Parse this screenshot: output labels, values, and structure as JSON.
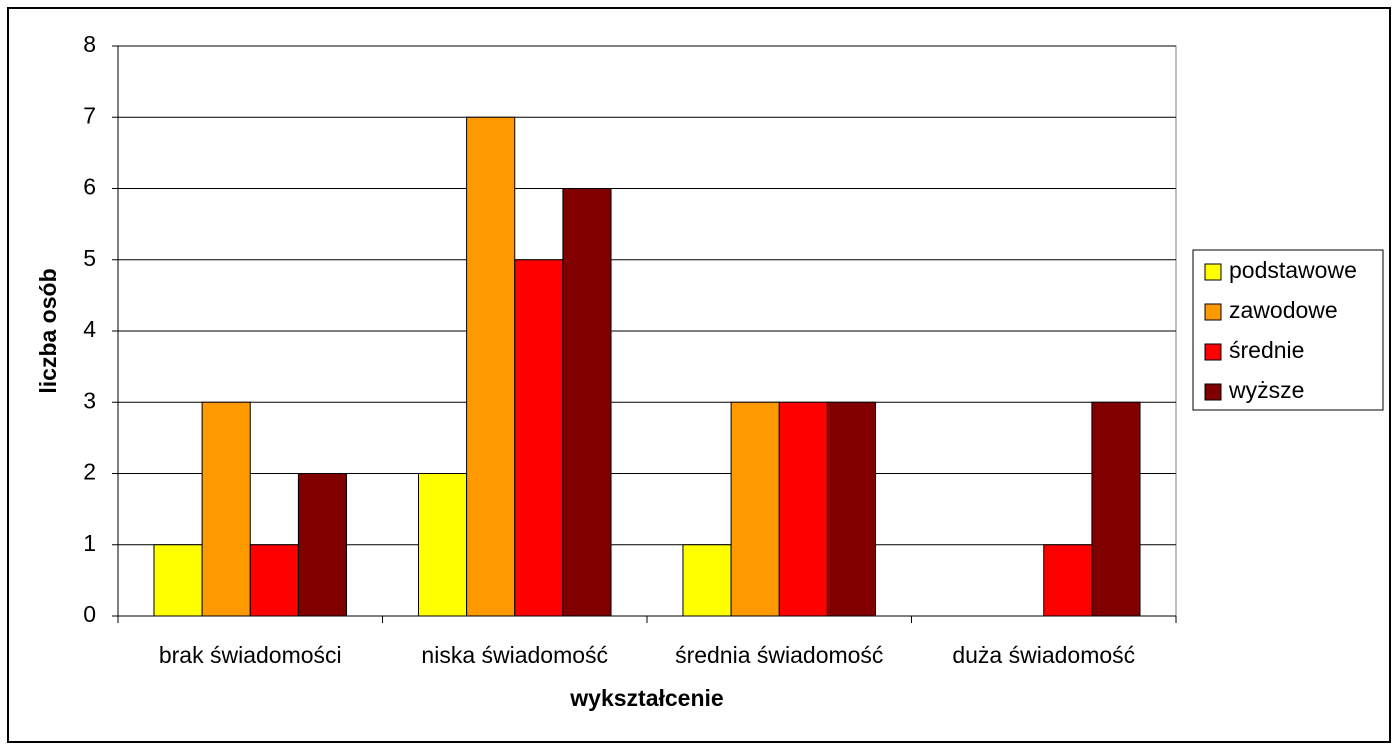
{
  "chart_data": {
    "type": "bar",
    "categories": [
      "brak świadomości",
      "niska świadomość",
      "średnia świadomość",
      "duża świadomość"
    ],
    "series": [
      {
        "name": "podstawowe",
        "color": "#ffff00",
        "values": [
          1,
          2,
          1,
          0
        ]
      },
      {
        "name": "zawodowe",
        "color": "#ff9900",
        "values": [
          3,
          7,
          3,
          0
        ]
      },
      {
        "name": "średnie",
        "color": "#ff0000",
        "values": [
          1,
          5,
          3,
          1
        ]
      },
      {
        "name": "wyższe",
        "color": "#800000",
        "values": [
          2,
          6,
          3,
          3
        ]
      }
    ],
    "xlabel": "wykształcenie",
    "ylabel": "liczba osób",
    "ylim": [
      0,
      8
    ],
    "yticks": [
      0,
      1,
      2,
      3,
      4,
      5,
      6,
      7,
      8
    ],
    "grid": true,
    "legend": "right"
  }
}
